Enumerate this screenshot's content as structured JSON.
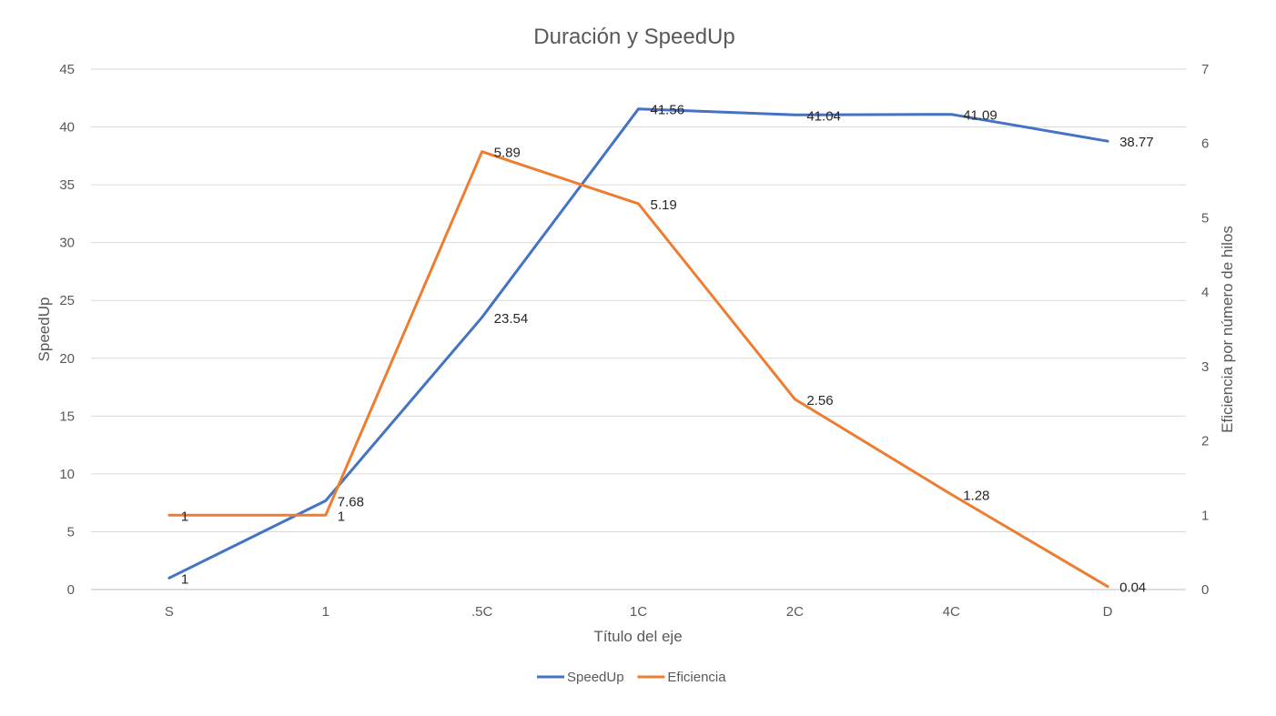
{
  "chart_data": {
    "type": "line",
    "title": "Duración y SpeedUp",
    "xlabel": "Título del eje",
    "ylabel": "SpeedUp",
    "y2label": "Eficiencia por número de hilos",
    "categories": [
      "S",
      "1",
      ".5C",
      "1C",
      "2C",
      "4C",
      "D"
    ],
    "ylim": [
      0,
      45
    ],
    "yticks": [
      0,
      5,
      10,
      15,
      20,
      25,
      30,
      35,
      40,
      45
    ],
    "y2lim": [
      0,
      7
    ],
    "y2ticks": [
      0,
      1,
      2,
      3,
      4,
      5,
      6,
      7
    ],
    "grid": true,
    "legend_position": "bottom",
    "series": [
      {
        "name": "SpeedUp",
        "axis": "left",
        "color": "#4472C4",
        "values": [
          1,
          7.68,
          23.54,
          41.56,
          41.04,
          41.09,
          38.77
        ],
        "labels": [
          "1",
          "7.68",
          "23.54",
          "41.56",
          "41.04",
          "41.09",
          "38.77"
        ]
      },
      {
        "name": "Eficiencia",
        "axis": "right",
        "color": "#ED7D31",
        "values": [
          1,
          1,
          5.89,
          5.19,
          2.56,
          1.28,
          0.04
        ],
        "labels": [
          "1",
          "1",
          "5.89",
          "5.19",
          "2.56",
          "1.28",
          "0.04"
        ]
      }
    ]
  }
}
